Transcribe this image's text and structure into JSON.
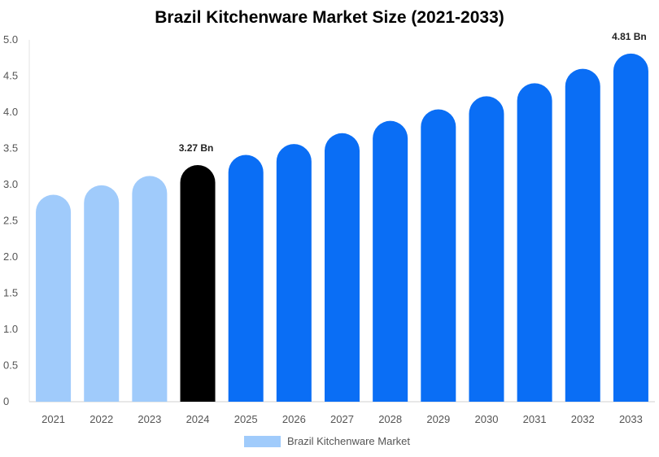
{
  "chart_data": {
    "type": "bar",
    "title": "Brazil Kitchenware Market Size (2021-2033)",
    "categories": [
      "2021",
      "2022",
      "2023",
      "2024",
      "2025",
      "2026",
      "2027",
      "2028",
      "2029",
      "2030",
      "2031",
      "2032",
      "2033"
    ],
    "series": [
      {
        "name": "Brazil Kitchenware Market",
        "values": [
          2.86,
          2.99,
          3.12,
          3.27,
          3.41,
          3.56,
          3.71,
          3.88,
          4.04,
          4.22,
          4.4,
          4.6,
          4.81
        ]
      }
    ],
    "data_labels": [
      {
        "category": "2024",
        "text": "3.27 Bn"
      },
      {
        "category": "2033",
        "text": "4.81 Bn"
      }
    ],
    "ylim": [
      0,
      5.0
    ],
    "yticks": [
      "0",
      "0.5",
      "1.0",
      "1.5",
      "2.0",
      "2.5",
      "3.0",
      "3.5",
      "4.0",
      "4.5",
      "5.0"
    ],
    "ytick_values": [
      0,
      0.5,
      1.0,
      1.5,
      2.0,
      2.5,
      3.0,
      3.5,
      4.0,
      4.5,
      5.0
    ],
    "colors": {
      "historical": "#a0cbfb",
      "current": "#000000",
      "forecast": "#0a6ef5",
      "legend": "#a0cbfb"
    },
    "legend": {
      "position": "bottom-center",
      "label": "Brazil Kitchenware Market"
    }
  }
}
